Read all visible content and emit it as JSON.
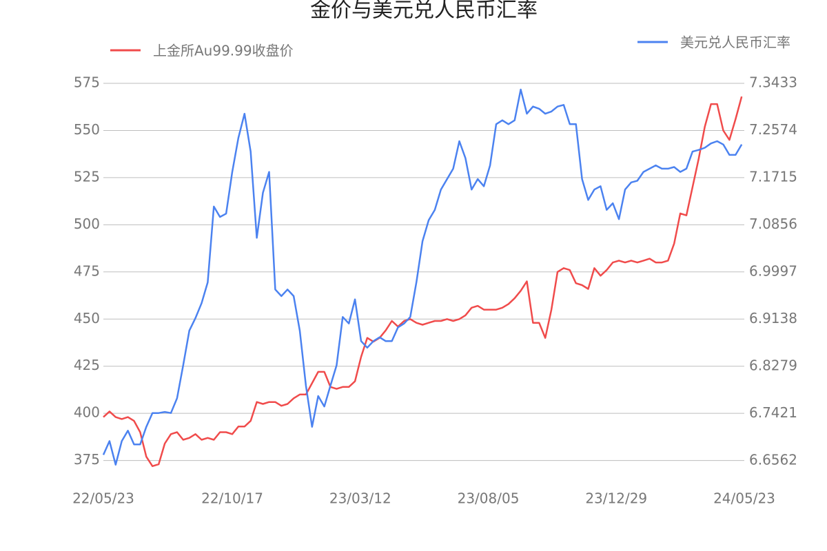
{
  "chart_data": {
    "type": "line",
    "title": "金价与美元兑人民币汇率",
    "x": [
      "22/05/23",
      "22/05/30",
      "22/06/06",
      "22/06/13",
      "22/06/20",
      "22/06/27",
      "22/07/04",
      "22/07/11",
      "22/07/18",
      "22/07/25",
      "22/08/01",
      "22/08/08",
      "22/08/15",
      "22/08/22",
      "22/08/29",
      "22/09/05",
      "22/09/12",
      "22/09/19",
      "22/09/26",
      "22/10/03",
      "22/10/10",
      "22/10/17",
      "22/10/24",
      "22/10/31",
      "22/11/07",
      "22/11/14",
      "22/11/21",
      "22/11/28",
      "22/12/05",
      "22/12/12",
      "22/12/19",
      "22/12/26",
      "23/01/02",
      "23/01/09",
      "23/01/16",
      "23/01/23",
      "23/01/30",
      "23/02/06",
      "23/02/13",
      "23/02/20",
      "23/02/27",
      "23/03/06",
      "23/03/13",
      "23/03/20",
      "23/03/27",
      "23/04/03",
      "23/04/10",
      "23/04/17",
      "23/04/24",
      "23/05/01",
      "23/05/08",
      "23/05/15",
      "23/05/22",
      "23/05/29",
      "23/06/05",
      "23/06/12",
      "23/06/19",
      "23/06/26",
      "23/07/03",
      "23/07/10",
      "23/07/17",
      "23/07/24",
      "23/07/31",
      "23/08/07",
      "23/08/14",
      "23/08/21",
      "23/08/28",
      "23/09/04",
      "23/09/11",
      "23/09/18",
      "23/09/25",
      "23/10/02",
      "23/10/09",
      "23/10/16",
      "23/10/23",
      "23/10/30",
      "23/11/06",
      "23/11/13",
      "23/11/20",
      "23/11/27",
      "23/12/04",
      "23/12/11",
      "23/12/18",
      "23/12/25",
      "24/01/01",
      "24/01/08",
      "24/01/15",
      "24/01/22",
      "24/01/29",
      "24/02/05",
      "24/02/12",
      "24/02/19",
      "24/02/26",
      "24/03/04",
      "24/03/11",
      "24/03/18",
      "24/03/25",
      "24/04/01",
      "24/04/08",
      "24/04/15",
      "24/04/22",
      "24/04/29",
      "24/05/06",
      "24/05/13",
      "24/05/20"
    ],
    "series": [
      {
        "name": "上金所Au99.99收盘价",
        "color": "#f04b4b",
        "axis": "y",
        "values": [
          398,
          401,
          398,
          397,
          398,
          396,
          390,
          377,
          372,
          373,
          384,
          389,
          390,
          386,
          387,
          389,
          386,
          387,
          386,
          390,
          390,
          389,
          393,
          393,
          396,
          406,
          405,
          406,
          406,
          404,
          405,
          408,
          410,
          410,
          416,
          422,
          422,
          414,
          413,
          414,
          414,
          417,
          430,
          440,
          438,
          440,
          444,
          449,
          446,
          449,
          450,
          448,
          447,
          448,
          449,
          449,
          450,
          449,
          450,
          452,
          456,
          457,
          455,
          455,
          455,
          456,
          458,
          461,
          465,
          470,
          448,
          448,
          440,
          455,
          475,
          477,
          476,
          469,
          468,
          466,
          477,
          473,
          476,
          480,
          481,
          480,
          481,
          480,
          481,
          482,
          480,
          480,
          481,
          490,
          506,
          505,
          520,
          535,
          552,
          564,
          564,
          550,
          545,
          556,
          568
        ]
      },
      {
        "name": "美元兑人民币汇率",
        "color": "#4b82f0",
        "axis": "y2",
        "values": [
          6.667,
          6.692,
          6.649,
          6.692,
          6.711,
          6.686,
          6.686,
          6.718,
          6.743,
          6.743,
          6.745,
          6.743,
          6.77,
          6.83,
          6.893,
          6.916,
          6.943,
          6.981,
          7.119,
          7.1,
          7.106,
          7.182,
          7.244,
          7.288,
          7.219,
          7.062,
          7.144,
          7.182,
          6.968,
          6.956,
          6.968,
          6.956,
          6.893,
          6.793,
          6.718,
          6.774,
          6.755,
          6.793,
          6.83,
          6.918,
          6.906,
          6.95,
          6.874,
          6.862,
          6.874,
          6.881,
          6.874,
          6.874,
          6.899,
          6.906,
          6.918,
          6.981,
          7.056,
          7.094,
          7.113,
          7.15,
          7.169,
          7.188,
          7.238,
          7.207,
          7.15,
          7.169,
          7.156,
          7.194,
          7.269,
          7.276,
          7.269,
          7.276,
          7.332,
          7.288,
          7.301,
          7.297,
          7.288,
          7.292,
          7.301,
          7.304,
          7.269,
          7.269,
          7.169,
          7.131,
          7.15,
          7.156,
          7.113,
          7.125,
          7.096,
          7.15,
          7.163,
          7.166,
          7.182,
          7.188,
          7.194,
          7.188,
          7.188,
          7.191,
          7.182,
          7.188,
          7.219,
          7.222,
          7.226,
          7.234,
          7.238,
          7.232,
          7.213,
          7.213,
          7.232
        ]
      }
    ],
    "xlim": [
      "22/05/23",
      "24/05/23"
    ],
    "xticks": [
      "22/05/23",
      "22/10/17",
      "23/03/12",
      "23/08/05",
      "23/12/29",
      "24/05/23"
    ],
    "ylim": [
      365,
      575
    ],
    "yticks": [
      375,
      400,
      425,
      450,
      475,
      500,
      525,
      550,
      575
    ],
    "y2lim": [
      6.6223,
      7.3433
    ],
    "y2ticks": [
      6.6562,
      6.7421,
      6.8279,
      6.9138,
      6.9997,
      7.0856,
      7.1715,
      7.2574,
      7.3433
    ],
    "grid": true
  }
}
